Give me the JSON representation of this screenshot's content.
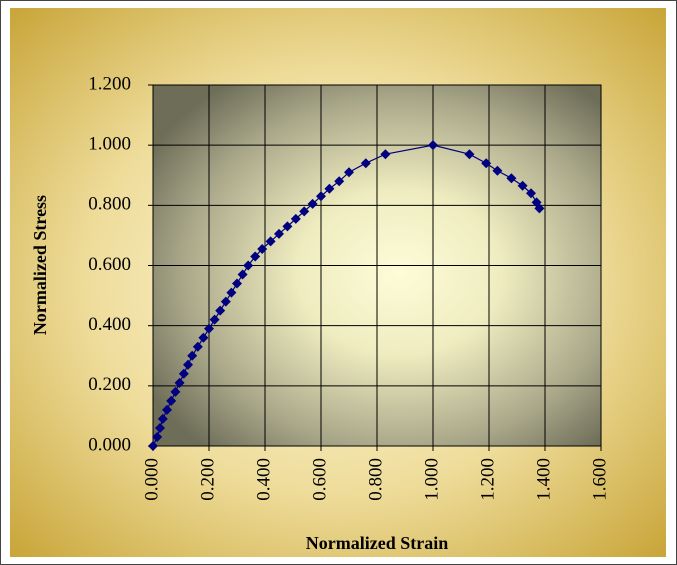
{
  "chart_data": {
    "type": "scatter-line",
    "xlabel": "Normalized Strain",
    "ylabel": "Normalized Stress",
    "x": [
      0.0,
      0.015,
      0.025,
      0.035,
      0.05,
      0.065,
      0.08,
      0.095,
      0.11,
      0.125,
      0.14,
      0.16,
      0.18,
      0.2,
      0.22,
      0.24,
      0.26,
      0.28,
      0.3,
      0.32,
      0.34,
      0.365,
      0.39,
      0.42,
      0.45,
      0.48,
      0.51,
      0.54,
      0.57,
      0.6,
      0.63,
      0.665,
      0.7,
      0.76,
      0.83,
      1.0,
      1.13,
      1.19,
      1.23,
      1.28,
      1.32,
      1.35,
      1.37,
      1.38
    ],
    "values": [
      0.0,
      0.03,
      0.06,
      0.09,
      0.12,
      0.15,
      0.18,
      0.21,
      0.24,
      0.27,
      0.3,
      0.33,
      0.36,
      0.39,
      0.42,
      0.45,
      0.48,
      0.51,
      0.54,
      0.57,
      0.6,
      0.63,
      0.655,
      0.68,
      0.705,
      0.73,
      0.755,
      0.78,
      0.805,
      0.83,
      0.855,
      0.88,
      0.91,
      0.94,
      0.97,
      1.0,
      0.97,
      0.94,
      0.915,
      0.89,
      0.865,
      0.84,
      0.81,
      0.79
    ],
    "color": "#000080",
    "xlim": [
      0,
      1.6
    ],
    "xticks": [
      {
        "value": 0,
        "label": "0.000"
      },
      {
        "value": 0.2,
        "label": "0.200"
      },
      {
        "value": 0.4,
        "label": "0.400"
      },
      {
        "value": 0.6,
        "label": "0.600"
      },
      {
        "value": 0.8,
        "label": "0.800"
      },
      {
        "value": 1.0,
        "label": "1.000"
      },
      {
        "value": 1.2,
        "label": "1.200"
      },
      {
        "value": 1.4,
        "label": "1.400"
      },
      {
        "value": 1.6,
        "label": "1.600"
      }
    ],
    "ylim": [
      0,
      1.2
    ],
    "yticks": [
      {
        "value": 0,
        "label": "0.000"
      },
      {
        "value": 0.2,
        "label": "0.200"
      },
      {
        "value": 0.4,
        "label": "0.400"
      },
      {
        "value": 0.6,
        "label": "0.600"
      },
      {
        "value": 0.8,
        "label": "0.800"
      },
      {
        "value": 1.0,
        "label": "1.000"
      },
      {
        "value": 1.2,
        "label": "1.200"
      }
    ],
    "grid": true
  }
}
